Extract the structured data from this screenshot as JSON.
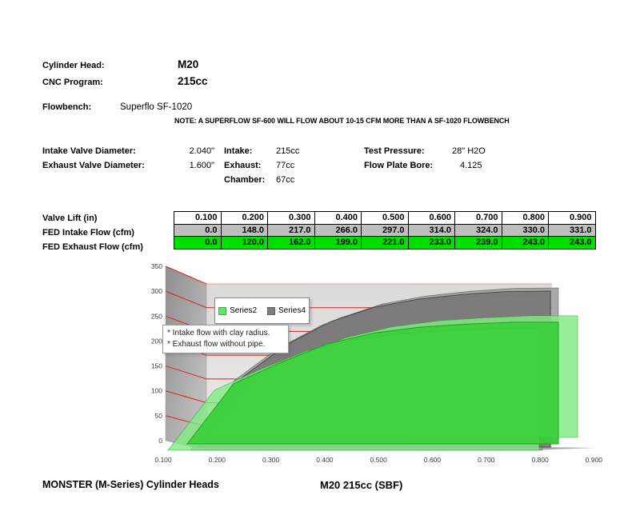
{
  "header": {
    "cylinder_head_label": "Cylinder Head:",
    "cylinder_head_value": "M20",
    "cnc_program_label": "CNC Program:",
    "cnc_program_value": "215cc",
    "flowbench_label": "Flowbench:",
    "flowbench_value": "Superflo SF-1020",
    "note": "NOTE: A SUPERFLOW SF-600 WILL FLOW ABOUT 10-15 CFM MORE THAN A SF-1020 FLOWBENCH"
  },
  "specs": {
    "intake_valve_label": "Intake Valve Diameter:",
    "intake_valve_value": "2.040\"",
    "exhaust_valve_label": "Exhaust Valve Diameter:",
    "exhaust_valve_value": "1.600\"",
    "intake_label": "Intake:",
    "intake_value": "215cc",
    "exhaust_label": "Exhaust:",
    "exhaust_value": "77cc",
    "chamber_label": "Chamber:",
    "chamber_value": "67cc",
    "test_pressure_label": "Test Pressure:",
    "test_pressure_value": "28\" H2O",
    "flow_plate_bore_label": "Flow Plate Bore:",
    "flow_plate_bore_value": "4.125"
  },
  "flow_table": {
    "rows": [
      {
        "label": "Valve Lift (in)",
        "bg": "#FFFFFF",
        "text": "#000000",
        "values": [
          "0.100",
          "0.200",
          "0.300",
          "0.400",
          "0.500",
          "0.600",
          "0.700",
          "0.800",
          "0.900"
        ]
      },
      {
        "label": "FED Intake Flow (cfm)",
        "bg": "#BFBFBF",
        "text": "#000000",
        "values": [
          "0.0",
          "148.0",
          "217.0",
          "266.0",
          "297.0",
          "314.0",
          "324.0",
          "330.0",
          "331.0"
        ]
      },
      {
        "label": "FED Exhaust Flow (cfm)",
        "bg": "#00DE00",
        "text": "#000000",
        "values": [
          "0.0",
          "120.0",
          "162.0",
          "199.0",
          "221.0",
          "233.0",
          "239.0",
          "243.0",
          "243.0"
        ]
      }
    ]
  },
  "chart_data": {
    "type": "area",
    "projection": "3d",
    "x": [
      0.1,
      0.2,
      0.3,
      0.4,
      0.5,
      0.6,
      0.7,
      0.8,
      0.9
    ],
    "x_tick_labels": [
      "0.100",
      "0.200",
      "0.300",
      "0.400",
      "0.500",
      "0.600",
      "0.700",
      "0.800",
      "0.900"
    ],
    "y_ticks": [
      0,
      50,
      100,
      150,
      200,
      250,
      300,
      350
    ],
    "ylim": [
      0,
      350
    ],
    "grid": true,
    "gridline_color": "#D32222",
    "gridline_top_color": "#F0A3A3",
    "legend_position": "top-left-inside",
    "series": [
      {
        "name": "Series4",
        "role": "intake-flow",
        "color": "#7A7878",
        "color_light": "#999797",
        "stroke": "#4C4A4A",
        "swatch": "#7F7F7F",
        "values": [
          0,
          148,
          217,
          266,
          297,
          314,
          324,
          330,
          331
        ]
      },
      {
        "name": "Series2",
        "role": "exhaust-flow",
        "color": "#38CF38",
        "color_light": "#82EA82",
        "stroke": "#1FA51F",
        "swatch": "#63E263",
        "values": [
          0,
          120,
          162,
          199,
          221,
          233,
          239,
          243,
          243
        ]
      }
    ],
    "legend_order": [
      "Series2",
      "Series4"
    ],
    "annotation_lines": [
      "* Intake flow with clay radius.",
      "* Exhaust flow without pipe."
    ]
  },
  "footer": {
    "left": "MONSTER (M-Series) Cylinder Heads",
    "right": "M20 215cc (SBF)"
  }
}
